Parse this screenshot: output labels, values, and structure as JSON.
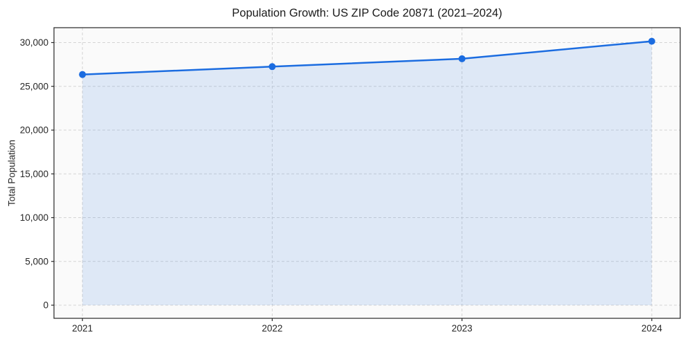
{
  "chart_data": {
    "type": "line",
    "title": "Population Growth: US ZIP Code 20871 (2021–2024)",
    "xlabel": "",
    "ylabel": "Total Population",
    "x": [
      2021,
      2022,
      2023,
      2024
    ],
    "series": [
      {
        "name": "Total Population",
        "values": [
          26350,
          27250,
          28150,
          30150
        ]
      }
    ],
    "area_fill": true,
    "markers": true,
    "grid": true,
    "legend": "none",
    "xticks": [
      2021,
      2022,
      2023,
      2024
    ],
    "yticks": [
      0,
      5000,
      10000,
      15000,
      20000,
      25000,
      30000
    ],
    "xlim": [
      2020.85,
      2024.15
    ],
    "ylim": [
      -1500,
      31700
    ],
    "colors": {
      "line": "#1b6ce0",
      "marker": "#1b6ce0",
      "area": "#1b6ce0",
      "grid": "#d4d4d4",
      "plot_background": "#fafafa",
      "figure_background": "#ffffff",
      "text": "#262626",
      "spine": "#262626"
    }
  }
}
